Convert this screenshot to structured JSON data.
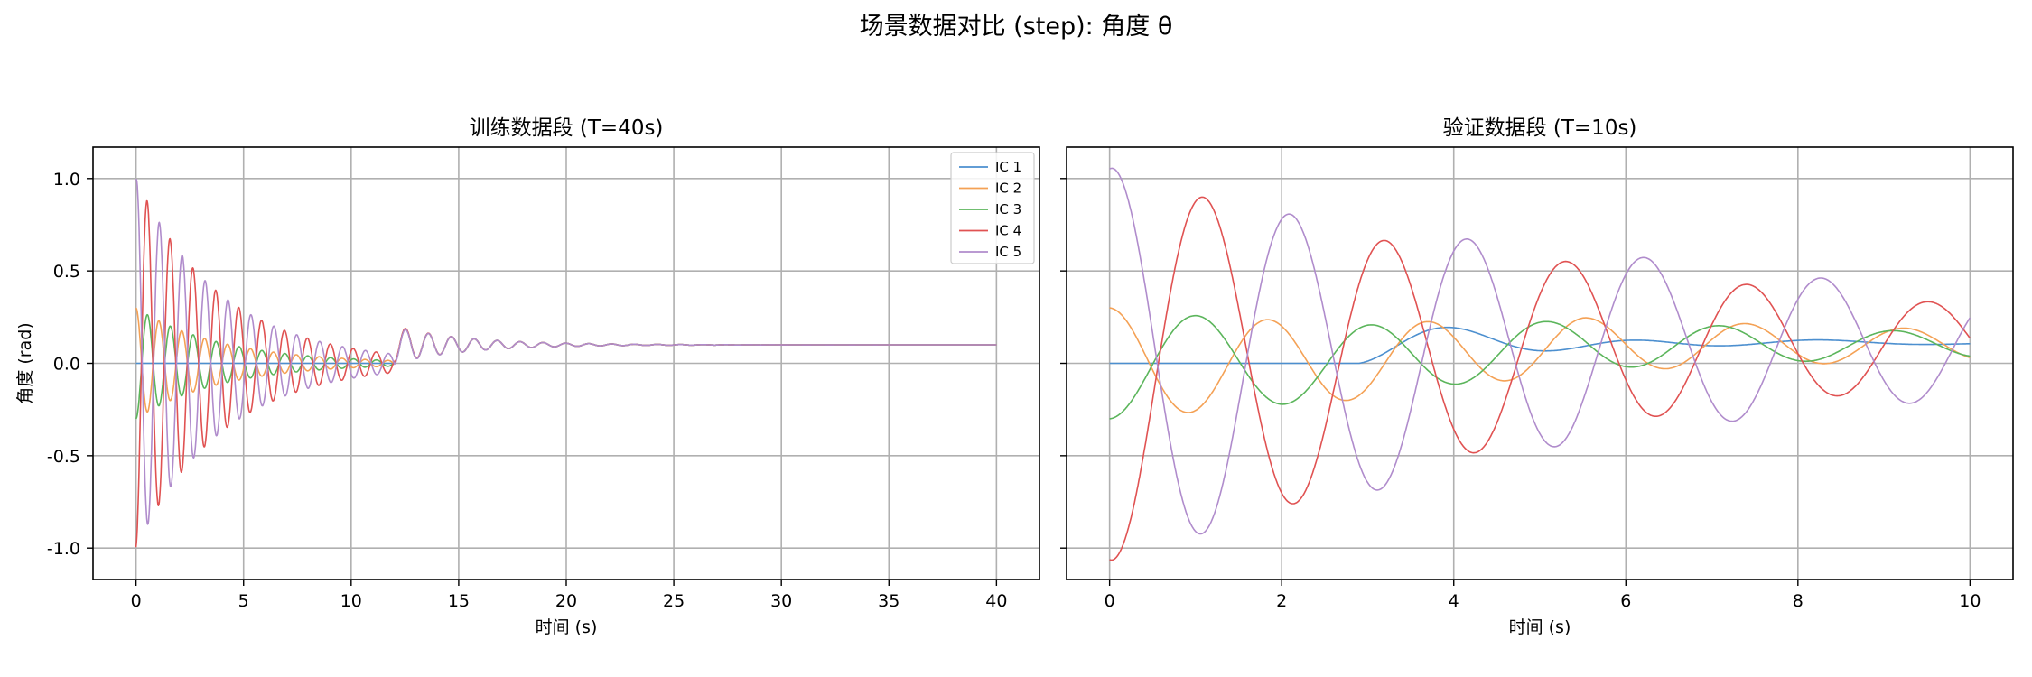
{
  "figure": {
    "title": "场景数据对比 (step): 角度 θ"
  },
  "series_styles": [
    {
      "name": "IC 1",
      "color": "#4c8fcf"
    },
    {
      "name": "IC 2",
      "color": "#f4a155"
    },
    {
      "name": "IC 3",
      "color": "#5bb55b"
    },
    {
      "name": "IC 4",
      "color": "#e05252"
    },
    {
      "name": "IC 5",
      "color": "#b08ccc"
    }
  ],
  "chart_data": [
    {
      "type": "line",
      "title": "训练数据段 (T=40s)",
      "xlabel": "时间 (s)",
      "ylabel": "角度 (rad)",
      "xlim": [
        -2,
        42
      ],
      "ylim": [
        -1.17,
        1.17
      ],
      "xticks": [
        0,
        5,
        10,
        15,
        20,
        25,
        30,
        35,
        40
      ],
      "yticks": [
        1.0,
        0.5,
        0.0,
        -0.5,
        -1.0
      ],
      "ytick_labels": [
        "1.0",
        "0.5",
        "0.0",
        "-0.5",
        "-1.0"
      ],
      "grid": true,
      "legend": "top-right",
      "series": [
        {
          "name": "IC 1",
          "start_value": 0.0,
          "settle_value": 0.1
        },
        {
          "name": "IC 2",
          "start_value": 0.3,
          "settle_value": 0.1
        },
        {
          "name": "IC 3",
          "start_value": -0.3,
          "settle_value": 0.1
        },
        {
          "name": "IC 4",
          "start_value": -1.0,
          "settle_value": 0.1
        },
        {
          "name": "IC 5",
          "start_value": 1.0,
          "settle_value": 0.1
        }
      ]
    },
    {
      "type": "line",
      "title": "验证数据段 (T=10s)",
      "xlabel": "时间 (s)",
      "xlim": [
        -0.5,
        10.5
      ],
      "ylim": [
        -1.17,
        1.17
      ],
      "xticks": [
        0,
        2,
        4,
        6,
        8,
        10
      ],
      "grid": true,
      "series": [
        {
          "name": "IC 1",
          "start_value": 0.0,
          "end_value": 0.14
        },
        {
          "name": "IC 2",
          "start_value": 0.3,
          "end_value": 0.13
        },
        {
          "name": "IC 3",
          "start_value": -0.3,
          "end_value": 0.09
        },
        {
          "name": "IC 4",
          "start_value": -1.0,
          "end_value": 0.09
        },
        {
          "name": "IC 5",
          "start_value": 1.0,
          "end_value": 0.12
        }
      ]
    }
  ]
}
